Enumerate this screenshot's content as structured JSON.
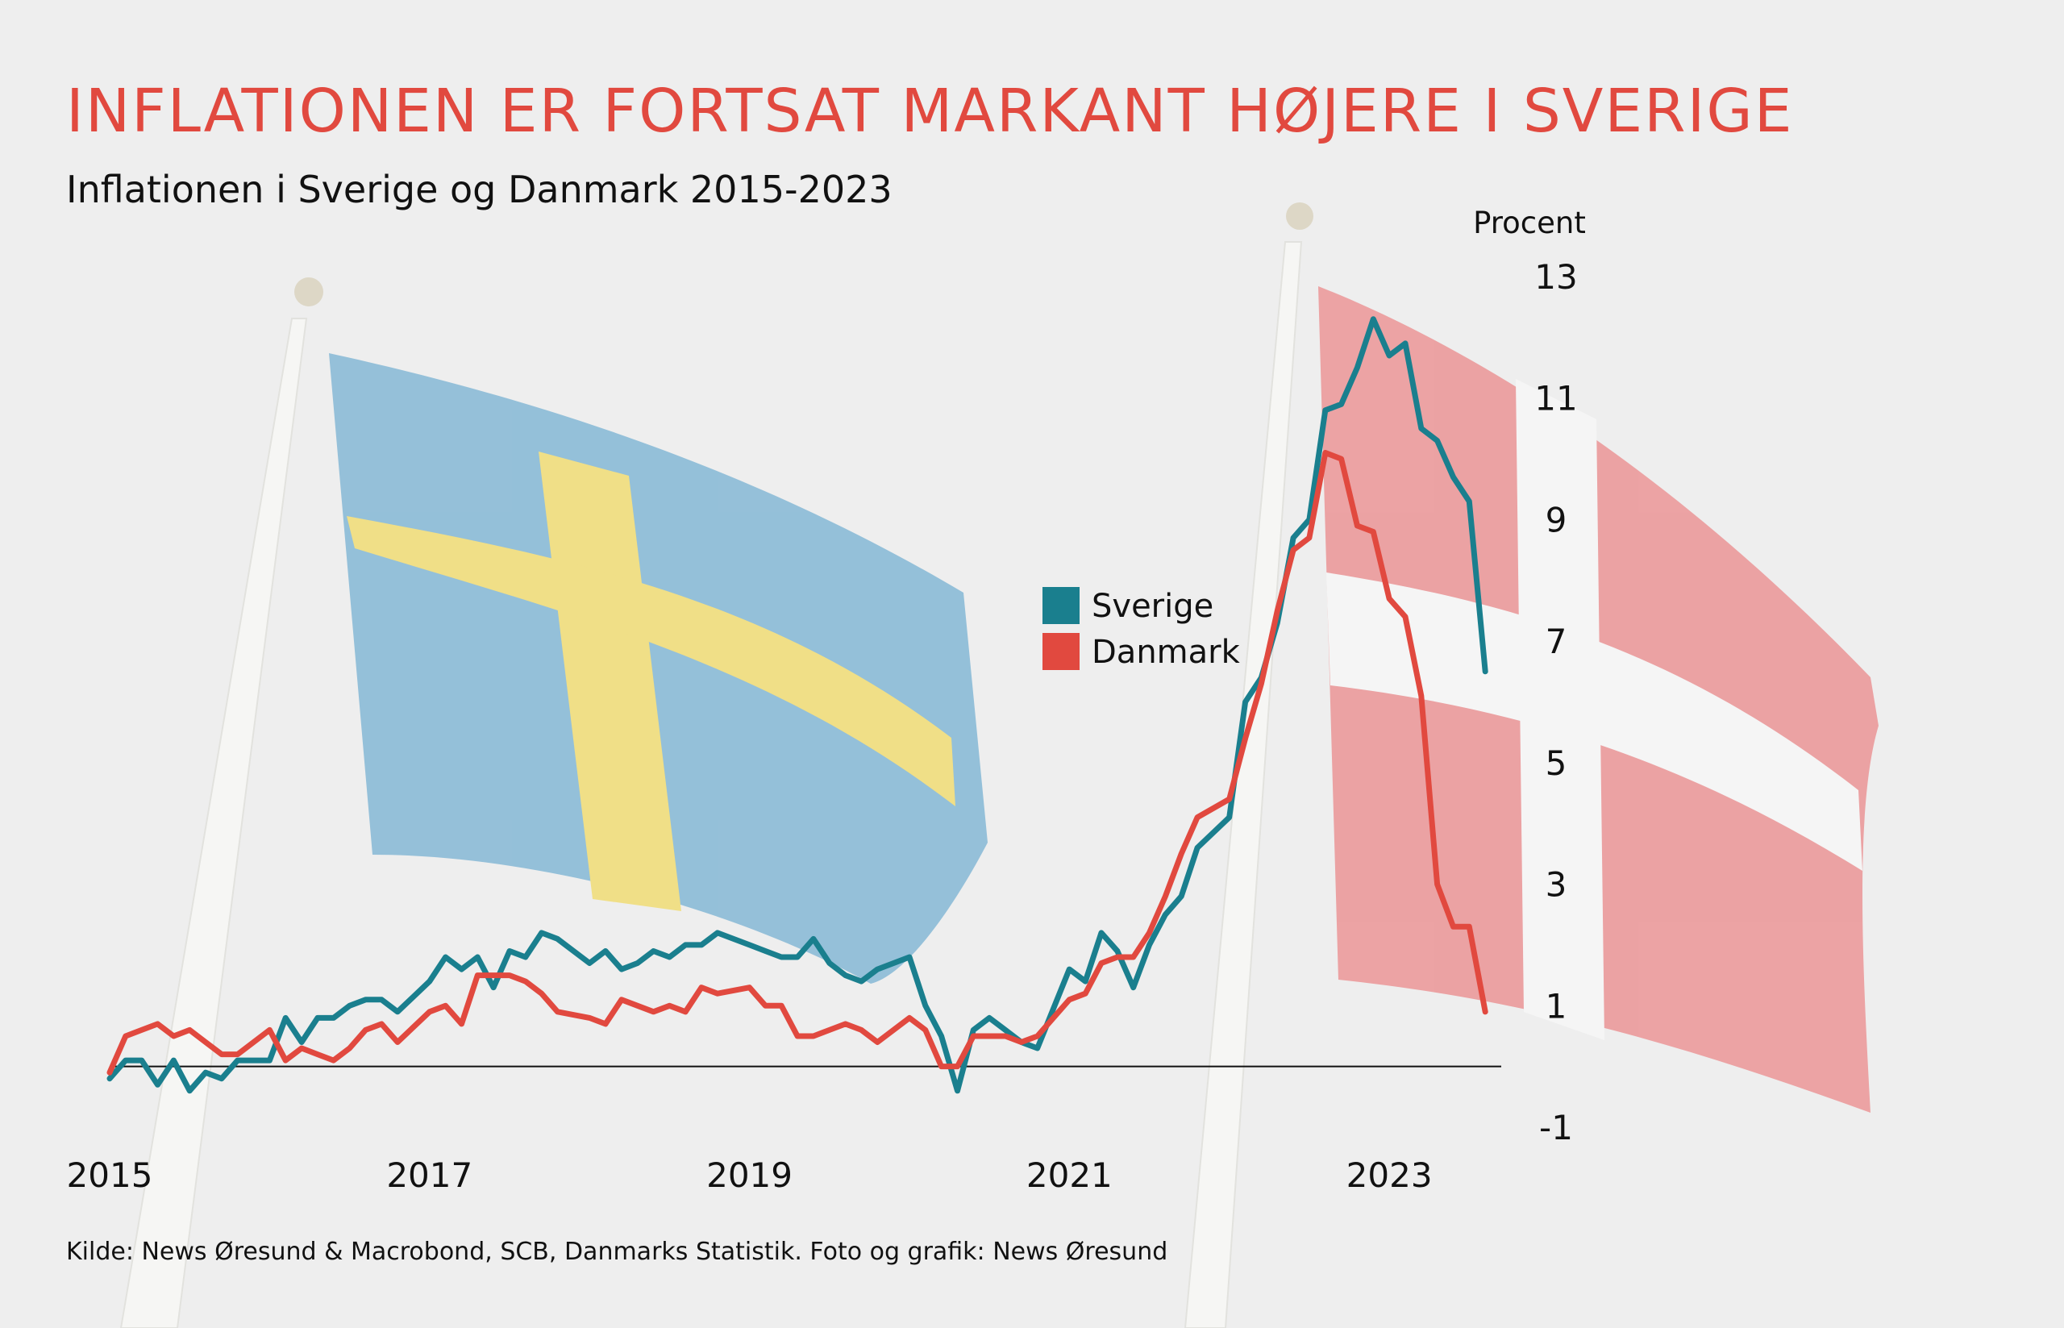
{
  "title": "INFLATIONEN ER FORTSAT MARKANT HØJERE I SVERIGE",
  "subtitle": "Inflationen i Sverige og Danmark 2015-2023",
  "source": "Kilde: News Øresund & Macrobond, SCB, Danmarks Statistik.  Foto og grafik: News Øresund",
  "colors": {
    "title": "#e1493f",
    "sverige": "#1a7f8e",
    "danmark": "#e1493f",
    "background": "#eeeeee"
  },
  "background_image": "photo of a Swedish flag and a Danish flag on flagpoles (faded)",
  "chart_data": {
    "type": "line",
    "title": "Inflationen i Sverige og Danmark 2015-2023",
    "ylabel": "Procent",
    "ylim": [
      -1,
      13
    ],
    "yticks": [
      13,
      11,
      9,
      7,
      5,
      3,
      1,
      -1
    ],
    "xlim": [
      2015,
      2023.7
    ],
    "xticks": [
      2015,
      2017,
      2019,
      2021,
      2023
    ],
    "grid": false,
    "baseline": 0,
    "legend_position": "center-right",
    "series": [
      {
        "name": "Sverige",
        "color": "#1a7f8e",
        "x": [
          2015.0,
          2015.1,
          2015.2,
          2015.3,
          2015.4,
          2015.5,
          2015.6,
          2015.7,
          2015.8,
          2016.0,
          2016.1,
          2016.2,
          2016.3,
          2016.4,
          2016.5,
          2016.6,
          2016.7,
          2016.8,
          2017.0,
          2017.1,
          2017.2,
          2017.3,
          2017.4,
          2017.5,
          2017.6,
          2017.7,
          2017.8,
          2018.0,
          2018.1,
          2018.2,
          2018.3,
          2018.4,
          2018.5,
          2018.6,
          2018.7,
          2018.8,
          2019.0,
          2019.1,
          2019.2,
          2019.3,
          2019.4,
          2019.5,
          2019.6,
          2019.7,
          2019.8,
          2020.0,
          2020.1,
          2020.2,
          2020.3,
          2020.4,
          2020.5,
          2020.6,
          2020.7,
          2020.8,
          2021.0,
          2021.1,
          2021.2,
          2021.3,
          2021.4,
          2021.5,
          2021.6,
          2021.7,
          2021.8,
          2022.0,
          2022.1,
          2022.2,
          2022.3,
          2022.4,
          2022.5,
          2022.6,
          2022.7,
          2022.8,
          2022.9,
          2023.0,
          2023.1,
          2023.2,
          2023.3,
          2023.4,
          2023.5,
          2023.6
        ],
        "values": [
          -0.2,
          0.1,
          0.1,
          -0.3,
          0.1,
          -0.4,
          -0.1,
          -0.2,
          0.1,
          0.1,
          0.8,
          0.4,
          0.8,
          0.8,
          1.0,
          1.1,
          1.1,
          0.9,
          1.4,
          1.8,
          1.6,
          1.8,
          1.3,
          1.9,
          1.8,
          2.2,
          2.1,
          1.7,
          1.9,
          1.6,
          1.7,
          1.9,
          1.8,
          2.0,
          2.0,
          2.2,
          2.0,
          1.9,
          1.8,
          1.8,
          2.1,
          1.7,
          1.5,
          1.4,
          1.6,
          1.8,
          1.0,
          0.5,
          -0.4,
          0.6,
          0.8,
          0.6,
          0.4,
          0.3,
          1.6,
          1.4,
          2.2,
          1.9,
          1.3,
          2.0,
          2.5,
          2.8,
          3.6,
          4.1,
          6.0,
          6.4,
          7.3,
          8.7,
          9.0,
          10.8,
          10.9,
          11.5,
          12.3,
          11.7,
          11.9,
          10.5,
          10.3,
          9.7,
          9.3,
          6.5
        ]
      },
      {
        "name": "Danmark",
        "color": "#e1493f",
        "x": [
          2015.0,
          2015.1,
          2015.2,
          2015.3,
          2015.4,
          2015.5,
          2015.6,
          2015.7,
          2015.8,
          2016.0,
          2016.1,
          2016.2,
          2016.3,
          2016.4,
          2016.5,
          2016.6,
          2016.7,
          2016.8,
          2017.0,
          2017.1,
          2017.2,
          2017.3,
          2017.4,
          2017.5,
          2017.6,
          2017.7,
          2017.8,
          2018.0,
          2018.1,
          2018.2,
          2018.3,
          2018.4,
          2018.5,
          2018.6,
          2018.7,
          2018.8,
          2019.0,
          2019.1,
          2019.2,
          2019.3,
          2019.4,
          2019.5,
          2019.6,
          2019.7,
          2019.8,
          2020.0,
          2020.1,
          2020.2,
          2020.3,
          2020.4,
          2020.5,
          2020.6,
          2020.7,
          2020.8,
          2021.0,
          2021.1,
          2021.2,
          2021.3,
          2021.4,
          2021.5,
          2021.6,
          2021.7,
          2021.8,
          2022.0,
          2022.1,
          2022.2,
          2022.3,
          2022.4,
          2022.5,
          2022.6,
          2022.7,
          2022.8,
          2022.9,
          2023.0,
          2023.1,
          2023.2,
          2023.3,
          2023.4,
          2023.5,
          2023.6
        ],
        "values": [
          -0.1,
          0.5,
          0.6,
          0.7,
          0.5,
          0.6,
          0.4,
          0.2,
          0.2,
          0.6,
          0.1,
          0.3,
          0.2,
          0.1,
          0.3,
          0.6,
          0.7,
          0.4,
          0.9,
          1.0,
          0.7,
          1.5,
          1.5,
          1.5,
          1.4,
          1.2,
          0.9,
          0.8,
          0.7,
          1.1,
          1.0,
          0.9,
          1.0,
          0.9,
          1.3,
          1.2,
          1.3,
          1.0,
          1.0,
          0.5,
          0.5,
          0.6,
          0.7,
          0.6,
          0.4,
          0.8,
          0.6,
          0.0,
          0.0,
          0.5,
          0.5,
          0.5,
          0.4,
          0.5,
          1.1,
          1.2,
          1.7,
          1.8,
          1.8,
          2.2,
          2.8,
          3.5,
          4.1,
          4.4,
          5.4,
          6.3,
          7.5,
          8.5,
          8.7,
          10.1,
          10.0,
          8.9,
          8.8,
          7.7,
          7.4,
          6.1,
          3.0,
          2.3,
          2.3,
          0.9
        ]
      }
    ]
  }
}
